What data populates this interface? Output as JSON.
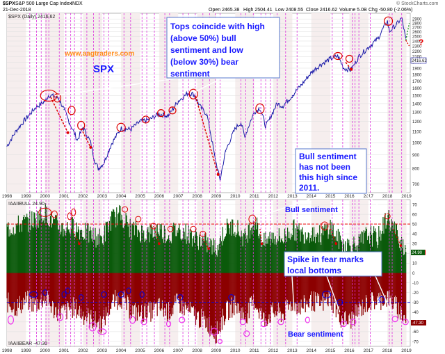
{
  "header": {
    "symbol": "$SPX",
    "name": "S&P 500 Large Cap Index",
    "exchange": "INDX",
    "date": "21-Dec-2018",
    "open": "Open 2465.38",
    "high": "High 2504.41",
    "low": "Low 2408.55",
    "close": "Close 2416.62",
    "volume": "Volume 5.0B",
    "chg": "Chg -50.80 (-2.06%)",
    "watermark": "© StockCharts.com"
  },
  "colors": {
    "price_line": "#1818a8",
    "bull_fill": "#0b5a0b",
    "bear_fill": "#8c0000",
    "vline": "#dd33dd",
    "note_text": "#1a1aff",
    "ref_red": "#ee0000",
    "ref_blue": "#0000ee",
    "marker_red": "#dd0000",
    "marker_magenta": "#ee33ee"
  },
  "annotations": {
    "site": "www.aagtraders.com",
    "spx_label": "SPX",
    "tops_note": [
      "Tops coincide with high",
      "(above 50%) bull",
      "sentiment and low",
      "(below 30%) bear",
      "sentiment"
    ],
    "bull_note": [
      "Bull sentiment",
      "has not been",
      "this high since",
      "2011."
    ],
    "bull_label": "Bull sentiment",
    "spike_note": [
      "Spike in fear marks",
      "local bottoms"
    ],
    "bear_label": "Bear sentiment",
    "question": "?"
  },
  "chart_data": [
    {
      "type": "line",
      "title": "$SPX (Daily) 2416.62",
      "last_value_label": "2416.62",
      "x": [
        1998.0,
        1998.5,
        1999.0,
        1999.5,
        2000.0,
        2000.2,
        2000.7,
        2001.0,
        2001.3,
        2001.7,
        2002.0,
        2002.4,
        2002.6,
        2002.8,
        2003.1,
        2003.5,
        2004.0,
        2004.5,
        2005.0,
        2005.5,
        2006.0,
        2006.5,
        2007.0,
        2007.5,
        2007.8,
        2008.2,
        2008.5,
        2008.9,
        2009.2,
        2009.5,
        2010.0,
        2010.3,
        2010.5,
        2011.0,
        2011.3,
        2011.6,
        2011.8,
        2012.2,
        2012.5,
        2013.0,
        2013.5,
        2014.0,
        2014.5,
        2015.0,
        2015.4,
        2015.7,
        2016.1,
        2016.5,
        2017.0,
        2017.5,
        2018.0,
        2018.1,
        2018.5,
        2018.75,
        2018.97
      ],
      "y": [
        970,
        1110,
        1230,
        1350,
        1430,
        1510,
        1470,
        1330,
        1180,
        1020,
        1140,
        1000,
        860,
        800,
        840,
        990,
        1130,
        1120,
        1200,
        1220,
        1280,
        1260,
        1430,
        1530,
        1520,
        1350,
        1280,
        900,
        720,
        930,
        1130,
        1190,
        1050,
        1300,
        1350,
        1150,
        1220,
        1400,
        1370,
        1500,
        1650,
        1830,
        1960,
        2060,
        2110,
        1900,
        1870,
        2100,
        2270,
        2450,
        2850,
        2600,
        2780,
        2930,
        2416
      ],
      "y_ticks": [
        700,
        800,
        900,
        1000,
        1100,
        1200,
        1300,
        1400,
        1500,
        1600,
        1700,
        1800,
        1900,
        2000,
        2100,
        2200,
        2300,
        2400,
        2500,
        2600,
        2700,
        2800,
        2900
      ],
      "y_scale": "log",
      "x_ticks": [
        "1998",
        "1999",
        "2000",
        "2001",
        "2002",
        "2003",
        "2004",
        "2005",
        "2006",
        "2007",
        "2008",
        "2009",
        "2010",
        "2011",
        "2012",
        "2013",
        "2014",
        "2015",
        "2016",
        "2017",
        "2018",
        "2019"
      ],
      "grid": true
    },
    {
      "type": "area",
      "series": [
        {
          "name": "!AAIIBULL 24.90",
          "last_value_label": "24.90",
          "x": [
            1998.0,
            1998.5,
            1999.0,
            1999.5,
            2000.0,
            2000.5,
            2001.0,
            2001.5,
            2002.0,
            2002.5,
            2003.0,
            2003.5,
            2004.0,
            2004.5,
            2005.0,
            2005.5,
            2006.0,
            2006.5,
            2007.0,
            2007.5,
            2008.0,
            2008.5,
            2009.0,
            2009.5,
            2010.0,
            2010.5,
            2011.0,
            2011.5,
            2012.0,
            2012.5,
            2013.0,
            2013.5,
            2014.0,
            2014.5,
            2015.0,
            2015.5,
            2016.0,
            2016.5,
            2017.0,
            2017.5,
            2018.0,
            2018.5,
            2018.97
          ],
          "y": [
            45,
            48,
            52,
            55,
            62,
            50,
            45,
            48,
            42,
            38,
            35,
            55,
            60,
            45,
            42,
            40,
            45,
            38,
            45,
            40,
            35,
            30,
            25,
            45,
            48,
            35,
            55,
            30,
            38,
            35,
            45,
            40,
            42,
            38,
            48,
            32,
            28,
            30,
            40,
            35,
            58,
            40,
            24.9
          ]
        },
        {
          "name": "!AAIIBEAR -47.30",
          "last_value_label": "-47.30",
          "x": [
            1998.0,
            1998.5,
            1999.0,
            1999.5,
            2000.0,
            2000.5,
            2001.0,
            2001.5,
            2002.0,
            2002.5,
            2003.0,
            2003.5,
            2004.0,
            2004.5,
            2005.0,
            2005.5,
            2006.0,
            2006.5,
            2007.0,
            2007.5,
            2008.0,
            2008.5,
            2009.0,
            2009.5,
            2010.0,
            2010.5,
            2011.0,
            2011.5,
            2012.0,
            2012.5,
            2013.0,
            2013.5,
            2014.0,
            2014.5,
            2015.0,
            2015.5,
            2016.0,
            2016.5,
            2017.0,
            2017.5,
            2018.0,
            2018.5,
            2018.97
          ],
          "y": [
            -30,
            -35,
            -28,
            -32,
            -25,
            -38,
            -40,
            -35,
            -42,
            -48,
            -52,
            -30,
            -25,
            -38,
            -42,
            -40,
            -35,
            -40,
            -30,
            -38,
            -45,
            -50,
            -62,
            -40,
            -32,
            -45,
            -28,
            -48,
            -40,
            -42,
            -30,
            -35,
            -28,
            -32,
            -25,
            -45,
            -50,
            -38,
            -30,
            -28,
            -25,
            -35,
            -47.3
          ]
        }
      ],
      "y_ticks": [
        -70,
        -60,
        -50,
        -40,
        -30,
        -20,
        -10,
        0,
        10,
        20,
        30,
        40,
        50,
        60,
        70
      ],
      "reference_lines": [
        50,
        -30
      ],
      "x_ticks": [
        "1998",
        "1999",
        "2000",
        "2001",
        "2002",
        "2003",
        "2004",
        "2005",
        "2006",
        "2007",
        "2008",
        "2009",
        "2010",
        "2011",
        "2012",
        "2013",
        "2014",
        "2015",
        "2016",
        "2017",
        "2018",
        "2019"
      ],
      "grid": true
    }
  ]
}
